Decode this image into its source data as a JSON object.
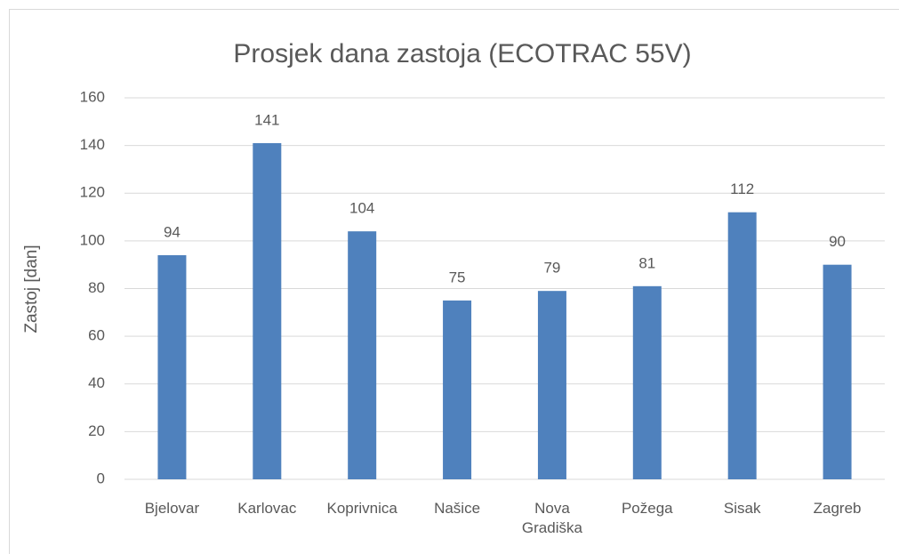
{
  "chart_data": {
    "type": "bar",
    "title": "Prosjek dana zastoja (ECOTRAC 55V)",
    "y_label": "Zastoj [dan]",
    "categories": [
      "Bjelovar",
      "Karlovac",
      "Koprivnica",
      "Našice",
      "Nova Gradiška",
      "Požega",
      "Sisak",
      "Zagreb"
    ],
    "values": [
      94,
      141,
      104,
      75,
      79,
      81,
      112,
      90
    ],
    "color": "#4f81bd",
    "ylim": [
      0,
      160
    ],
    "yticks": [
      0,
      20,
      40,
      60,
      80,
      100,
      120,
      140,
      160
    ],
    "grid": true
  }
}
